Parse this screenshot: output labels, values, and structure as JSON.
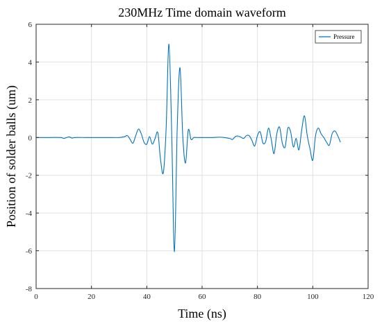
{
  "chart_data": {
    "type": "line",
    "title": "230MHz Time domain waveform",
    "xlabel": "Time (ns)",
    "ylabel": "Position of solder balls (um)",
    "xlim": [
      0,
      120
    ],
    "ylim": [
      -8,
      6
    ],
    "x_ticks": [
      0,
      20,
      40,
      60,
      80,
      100,
      120
    ],
    "y_ticks": [
      -8,
      -6,
      -4,
      -2,
      0,
      2,
      4,
      6
    ],
    "grid": true,
    "legend_position": "top-right",
    "series": [
      {
        "name": "Pressure",
        "color": "#0072BD",
        "x": [
          0,
          5,
          9,
          10,
          11,
          12,
          13,
          14,
          18,
          22,
          26,
          30,
          32,
          33,
          34,
          35,
          36,
          37,
          38,
          39,
          40,
          41,
          42,
          43,
          44,
          45,
          46,
          47,
          48,
          49,
          50,
          51,
          52,
          53,
          54,
          55,
          56,
          57,
          58,
          60,
          62,
          64,
          66,
          68,
          70,
          71,
          72,
          73,
          74,
          75,
          76,
          77,
          78,
          79,
          80,
          81,
          82,
          83,
          84,
          85,
          86,
          87,
          88,
          89,
          90,
          91,
          92,
          93,
          94,
          95,
          96,
          97,
          98,
          99,
          100,
          101,
          102,
          103,
          104,
          105,
          106,
          107,
          108,
          109,
          110
        ],
        "y": [
          0,
          0,
          0,
          -0.05,
          0,
          0.03,
          -0.03,
          0,
          0,
          0,
          0,
          0,
          0.05,
          0.1,
          -0.1,
          -0.3,
          0.1,
          0.45,
          0.2,
          -0.25,
          -0.35,
          0.05,
          -0.35,
          -0.05,
          0.25,
          -1.2,
          -1.85,
          0.5,
          4.95,
          0.3,
          -6.05,
          0.5,
          3.7,
          0.1,
          -1.35,
          0.4,
          -0.1,
          0,
          0,
          0,
          0,
          0,
          0.02,
          0,
          -0.05,
          -0.1,
          0.05,
          0.08,
          0.02,
          -0.05,
          0.1,
          0.1,
          -0.15,
          -0.45,
          0.1,
          0.3,
          -0.3,
          -0.2,
          0.5,
          -0.1,
          -0.85,
          0.2,
          0.55,
          -0.3,
          -0.5,
          0.5,
          0.3,
          -0.5,
          -0.05,
          -0.65,
          0.4,
          1.15,
          0.1,
          -0.6,
          -1.2,
          0.1,
          0.5,
          0.2,
          0,
          -0.25,
          -0.4,
          0.2,
          0.35,
          0.1,
          -0.25
        ]
      }
    ]
  }
}
